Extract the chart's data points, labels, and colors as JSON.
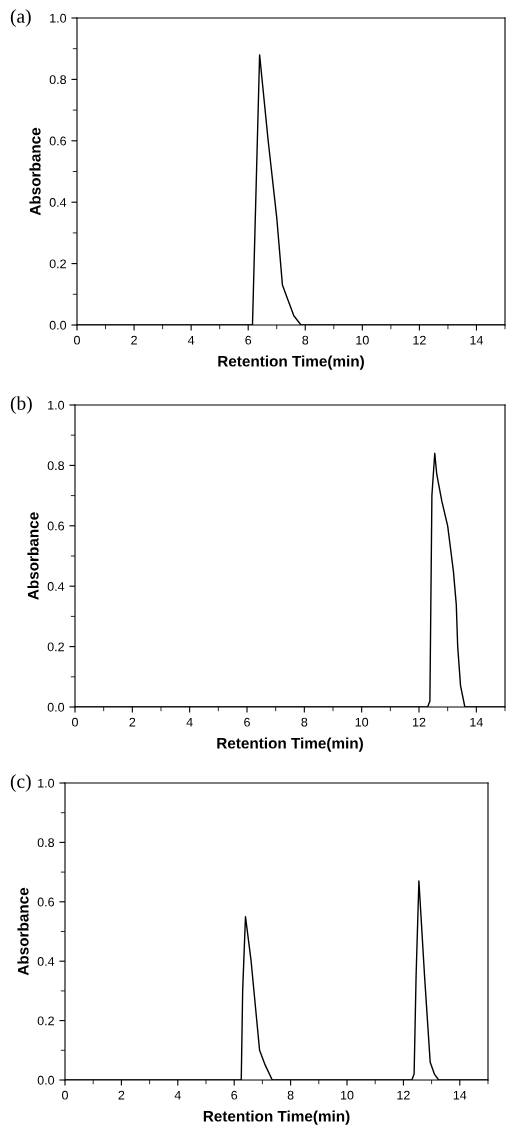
{
  "chart_data": [
    {
      "type": "line",
      "title": "(a)",
      "xlabel": "Retention Time(min)",
      "ylabel": "Absorbance",
      "xlim": [
        0,
        15
      ],
      "xticks": [
        0,
        2,
        4,
        6,
        8,
        10,
        12,
        14
      ],
      "ylim": [
        0,
        1
      ],
      "yticks": [
        {
          "value": 0,
          "label": "0.0"
        },
        {
          "value": 0.2,
          "label": "0.2"
        },
        {
          "value": 0.4,
          "label": "0.4"
        },
        {
          "value": 0.6,
          "label": "0.6"
        },
        {
          "value": 0.8,
          "label": "0.8"
        },
        {
          "value": 1,
          "label": "1.0"
        }
      ],
      "series": [
        {
          "color": "#000000",
          "x": [
            0,
            6.15,
            6.4,
            6.7,
            7.0,
            7.2,
            7.4,
            7.6,
            7.85,
            15
          ],
          "values": [
            0,
            0,
            0.88,
            0.6,
            0.35,
            0.13,
            0.08,
            0.03,
            0,
            0
          ]
        }
      ]
    },
    {
      "type": "line",
      "title": "(b)",
      "xlabel": "Retention Time(min)",
      "ylabel": "Absorbance",
      "xlim": [
        0,
        15
      ],
      "xticks": [
        0,
        2,
        4,
        6,
        8,
        10,
        12,
        14
      ],
      "ylim": [
        0,
        1
      ],
      "yticks": [
        {
          "value": 0,
          "label": "0.0"
        },
        {
          "value": 0.2,
          "label": "0.2"
        },
        {
          "value": 0.4,
          "label": "0.4"
        },
        {
          "value": 0.6,
          "label": "0.6"
        },
        {
          "value": 0.8,
          "label": "0.8"
        },
        {
          "value": 1,
          "label": "1.0"
        }
      ],
      "series": [
        {
          "color": "#000000",
          "x": [
            0,
            12.3,
            12.38,
            12.45,
            12.55,
            12.62,
            12.8,
            13.0,
            13.2,
            13.3,
            13.35,
            13.45,
            13.6,
            15
          ],
          "values": [
            0,
            0,
            0.02,
            0.7,
            0.84,
            0.77,
            0.68,
            0.6,
            0.45,
            0.34,
            0.2,
            0.07,
            0,
            0
          ]
        }
      ]
    },
    {
      "type": "line",
      "title": "(c)",
      "xlabel": "Retention Time(min)",
      "ylabel": "Absorbance",
      "xlim": [
        0,
        15
      ],
      "xticks": [
        0,
        2,
        4,
        6,
        8,
        10,
        12,
        14
      ],
      "ylim": [
        0,
        1
      ],
      "yticks": [
        {
          "value": 0,
          "label": "0.0"
        },
        {
          "value": 0.2,
          "label": "0.2"
        },
        {
          "value": 0.4,
          "label": "0.4"
        },
        {
          "value": 0.6,
          "label": "0.6"
        },
        {
          "value": 0.8,
          "label": "0.8"
        },
        {
          "value": 1,
          "label": "1.0"
        }
      ],
      "series": [
        {
          "color": "#000000",
          "x": [
            0,
            6.25,
            6.3,
            6.4,
            6.6,
            6.9,
            7.1,
            7.35,
            12.3,
            12.38,
            12.45,
            12.55,
            12.75,
            12.95,
            13.1,
            13.25,
            15
          ],
          "values": [
            0,
            0,
            0.3,
            0.55,
            0.4,
            0.1,
            0.05,
            0,
            0,
            0.02,
            0.35,
            0.67,
            0.35,
            0.06,
            0.02,
            0,
            0
          ]
        }
      ]
    }
  ]
}
